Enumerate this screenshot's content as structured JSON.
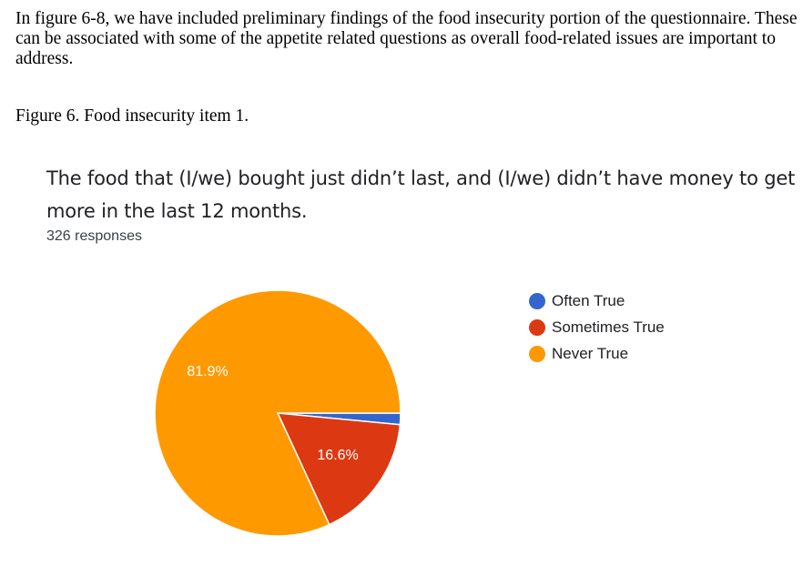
{
  "document": {
    "intro": "In figure 6-8, we have included preliminary findings of the food insecurity portion of the questionnaire.  These can be associated with some of the appetite related questions as overall food-related issues are important to address.",
    "figure_caption": "Figure 6.  Food insecurity item 1."
  },
  "chart_data": {
    "type": "pie",
    "title": "The food that (I/we) bought just didn’t last, and (I/we) didn’t have money to get more in the last 12 months.",
    "subtitle": "326 responses",
    "legend_position": "right",
    "slices": [
      {
        "name": "Often True",
        "value": 1.5,
        "label": "",
        "color": "#3366cc"
      },
      {
        "name": "Sometimes True",
        "value": 16.6,
        "label": "16.6%",
        "color": "#dc3912"
      },
      {
        "name": "Never True",
        "value": 81.9,
        "label": "81.9%",
        "color": "#ff9900"
      }
    ]
  }
}
